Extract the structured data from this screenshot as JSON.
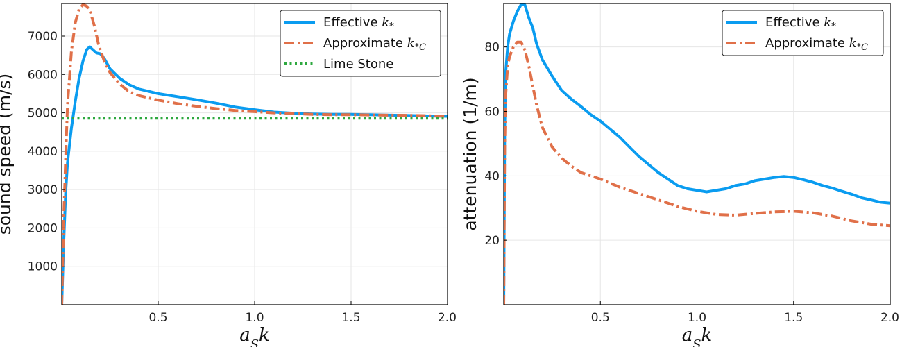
{
  "chart_data": [
    {
      "type": "line",
      "xlabel": "a_S k",
      "ylabel": "sound speed (m/s)",
      "xlim": [
        0,
        2.0
      ],
      "ylim": [
        0,
        7850
      ],
      "xticks": [
        0.5,
        1.0,
        1.5,
        2.0
      ],
      "xtick_labels": [
        "0.5",
        "1.0",
        "1.5",
        "2.0"
      ],
      "yticks": [
        1000,
        2000,
        3000,
        4000,
        5000,
        6000,
        7000
      ],
      "ytick_labels": [
        "1000",
        "2000",
        "3000",
        "4000",
        "5000",
        "6000",
        "7000"
      ],
      "grid": true,
      "legend_position": "top-right",
      "series": [
        {
          "name": "Effective k*",
          "name_main": "Effective ",
          "name_var": "k",
          "name_sub": "*",
          "color": "#0a9cf0",
          "style": "solid",
          "x": [
            0.0,
            0.01,
            0.02,
            0.03,
            0.05,
            0.07,
            0.09,
            0.11,
            0.13,
            0.145,
            0.16,
            0.18,
            0.2,
            0.22,
            0.25,
            0.3,
            0.35,
            0.4,
            0.45,
            0.5,
            0.55,
            0.6,
            0.7,
            0.8,
            0.9,
            1.0,
            1.1,
            1.2,
            1.3,
            1.4,
            1.5,
            1.6,
            1.7,
            1.8,
            1.9,
            2.0
          ],
          "y": [
            0,
            1600,
            2900,
            3700,
            4600,
            5300,
            5900,
            6350,
            6650,
            6720,
            6650,
            6560,
            6540,
            6420,
            6150,
            5900,
            5730,
            5620,
            5560,
            5500,
            5460,
            5420,
            5340,
            5250,
            5150,
            5080,
            5020,
            4990,
            4970,
            4960,
            4960,
            4950,
            4940,
            4930,
            4920,
            4910
          ]
        },
        {
          "name": "Approximate k*C",
          "name_main": "Approximate ",
          "name_var": "k",
          "name_sub": "*C",
          "color": "#e07049",
          "style": "dashdot",
          "x": [
            0.0,
            0.01,
            0.02,
            0.03,
            0.05,
            0.07,
            0.09,
            0.11,
            0.13,
            0.15,
            0.17,
            0.19,
            0.22,
            0.25,
            0.3,
            0.35,
            0.4,
            0.5,
            0.6,
            0.7,
            0.8,
            0.9,
            1.0,
            1.1,
            1.2,
            1.3,
            1.4,
            1.5,
            1.6,
            1.7,
            1.8,
            1.9,
            2.0
          ],
          "y": [
            0,
            2200,
            3800,
            5200,
            6600,
            7350,
            7700,
            7820,
            7780,
            7600,
            7250,
            6800,
            6350,
            6050,
            5750,
            5550,
            5450,
            5330,
            5240,
            5170,
            5110,
            5060,
            5030,
            5000,
            4980,
            4960,
            4950,
            4950,
            4945,
            4940,
            4935,
            4925,
            4910
          ]
        },
        {
          "name": "Lime Stone",
          "name_main": "Lime Stone",
          "name_var": "",
          "name_sub": "",
          "color": "#2ea83f",
          "style": "dotted",
          "x": [
            0.0,
            2.0
          ],
          "y": [
            4860,
            4860
          ]
        }
      ]
    },
    {
      "type": "line",
      "xlabel": "a_S k",
      "ylabel": "attenuation (1/m)",
      "xlim": [
        0,
        2.0
      ],
      "ylim": [
        0,
        93.5
      ],
      "xticks": [
        0.5,
        1.0,
        1.5,
        2.0
      ],
      "xtick_labels": [
        "0.5",
        "1.0",
        "1.5",
        "2.0"
      ],
      "yticks": [
        20,
        40,
        60,
        80
      ],
      "ytick_labels": [
        "20",
        "40",
        "60",
        "80"
      ],
      "grid": true,
      "legend_position": "top-right",
      "series": [
        {
          "name": "Effective k*",
          "name_main": "Effective ",
          "name_var": "k",
          "name_sub": "*",
          "color": "#0a9cf0",
          "style": "solid",
          "x": [
            0.0,
            0.005,
            0.01,
            0.02,
            0.03,
            0.05,
            0.07,
            0.09,
            0.11,
            0.13,
            0.15,
            0.17,
            0.2,
            0.25,
            0.3,
            0.35,
            0.4,
            0.45,
            0.5,
            0.55,
            0.6,
            0.65,
            0.7,
            0.75,
            0.8,
            0.85,
            0.9,
            0.95,
            1.0,
            1.05,
            1.1,
            1.15,
            1.2,
            1.25,
            1.3,
            1.35,
            1.4,
            1.45,
            1.5,
            1.55,
            1.6,
            1.65,
            1.7,
            1.75,
            1.8,
            1.85,
            1.9,
            1.95,
            2.0
          ],
          "y": [
            0,
            55,
            72,
            80,
            84,
            88,
            91,
            93.2,
            93,
            89,
            86,
            81,
            76,
            71,
            66.5,
            63.8,
            61.5,
            59,
            57,
            54.5,
            52,
            49,
            46,
            43.5,
            41,
            39,
            37,
            36,
            35.5,
            35,
            35.5,
            36,
            37,
            37.5,
            38.5,
            39,
            39.5,
            39.8,
            39.5,
            38.8,
            38,
            37,
            36.2,
            35.2,
            34.3,
            33.2,
            32.5,
            31.8,
            31.5
          ]
        },
        {
          "name": "Approximate k*C",
          "name_main": "Approximate ",
          "name_var": "k",
          "name_sub": "*C",
          "color": "#e07049",
          "style": "dashdot",
          "x": [
            0.0,
            0.005,
            0.01,
            0.02,
            0.03,
            0.05,
            0.07,
            0.09,
            0.11,
            0.13,
            0.15,
            0.17,
            0.2,
            0.25,
            0.3,
            0.35,
            0.4,
            0.5,
            0.6,
            0.7,
            0.8,
            0.9,
            1.0,
            1.1,
            1.2,
            1.3,
            1.4,
            1.5,
            1.6,
            1.7,
            1.8,
            1.9,
            2.0
          ],
          "y": [
            0,
            50,
            65,
            74,
            77,
            80,
            81.5,
            81.5,
            79,
            74,
            68,
            62,
            55,
            49,
            45.5,
            43,
            41,
            39,
            36.5,
            34.5,
            32.5,
            30.5,
            29,
            28,
            27.8,
            28.3,
            28.8,
            29,
            28.5,
            27.5,
            26,
            25,
            24.5
          ]
        }
      ]
    }
  ]
}
